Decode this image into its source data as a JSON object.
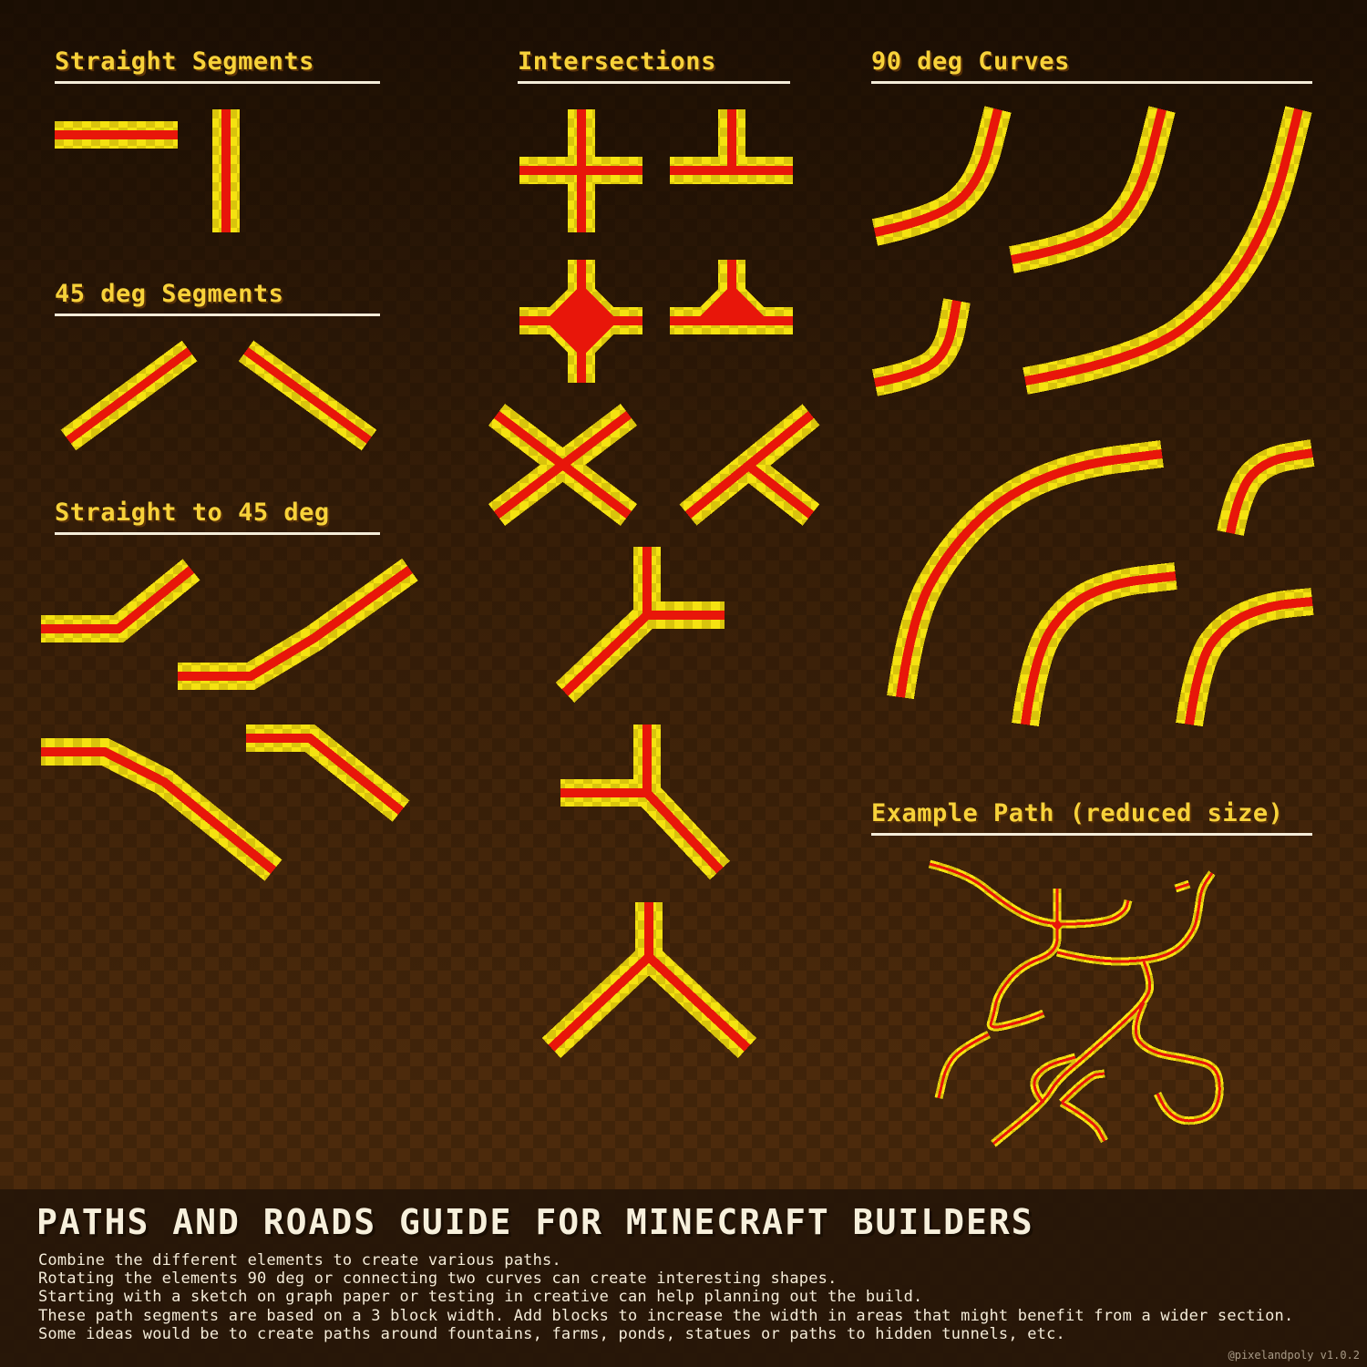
{
  "sections": {
    "straight_segments": "Straight Segments",
    "deg45_segments": "45 deg Segments",
    "straight_to_45": "Straight to 45 deg",
    "intersections": "Intersections",
    "curves_90": "90 deg Curves",
    "example_path": "Example Path (reduced size)"
  },
  "footer": {
    "title": "PATHS AND ROADS GUIDE FOR MINECRAFT BUILDERS",
    "lines": [
      "Combine the different elements to create various paths.",
      "Rotating the elements 90 deg or connecting two curves can create interesting shapes.",
      "Starting with a sketch on graph paper or testing in creative can help planning out the build.",
      "These path segments are based on a 3 block width. Add blocks to increase the width in areas that might benefit from a wider section.",
      "Some ideas would be to create paths around fountains, farms, ponds, statues or paths to hidden tunnels, etc."
    ],
    "credit": "@pixelandpoly v1.0.2"
  },
  "colors": {
    "center": "#e8160a",
    "border": "#f5e211",
    "border_alt": "#d9c40c",
    "background": "#3a2008"
  }
}
